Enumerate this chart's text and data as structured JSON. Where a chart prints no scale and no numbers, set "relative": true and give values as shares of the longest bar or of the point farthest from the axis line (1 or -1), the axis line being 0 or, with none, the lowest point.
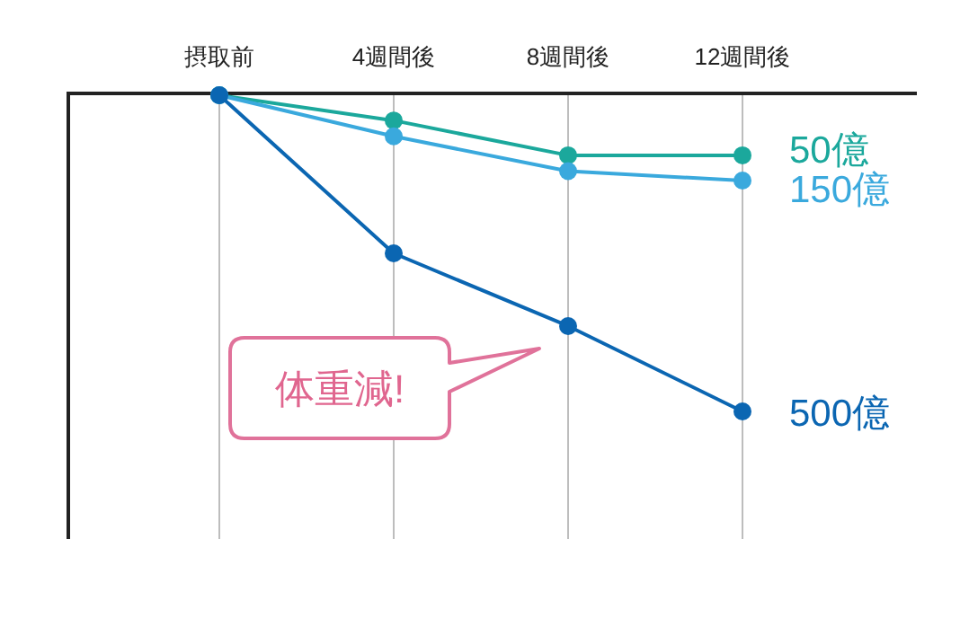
{
  "chart_data": {
    "type": "line",
    "relative": true,
    "categories": [
      "摂取前",
      "4週間後",
      "8週間後",
      "12週間後"
    ],
    "series": [
      {
        "name": "50億",
        "color": "#1ba89c",
        "values": [
          0,
          -0.08,
          -0.19,
          -0.19
        ]
      },
      {
        "name": "150億",
        "color": "#3aa9dd",
        "values": [
          0,
          -0.13,
          -0.24,
          -0.27
        ]
      },
      {
        "name": "500億",
        "color": "#0b66b2",
        "values": [
          0,
          -0.5,
          -0.73,
          -1
        ]
      }
    ],
    "grid": "x",
    "marker": "circle",
    "annotations": [
      "体重減!"
    ]
  }
}
